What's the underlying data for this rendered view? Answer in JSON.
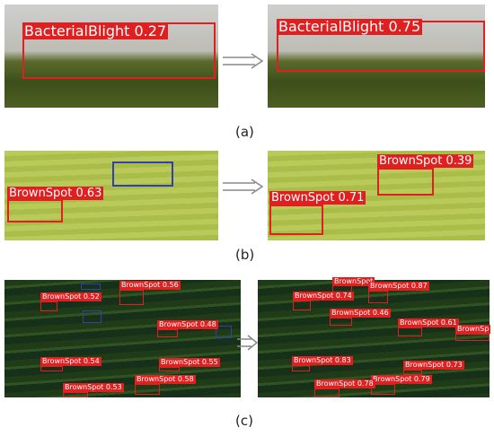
{
  "panels": [
    {
      "caption": "(a)",
      "left": {
        "detections": [
          {
            "label": "BacterialBlight 0.27"
          }
        ]
      },
      "right": {
        "detections": [
          {
            "label": "BacterialBlight 0.75"
          }
        ]
      }
    },
    {
      "caption": "(b)",
      "left": {
        "detections": [
          {
            "label": "BrownSpot 0.63"
          }
        ]
      },
      "right": {
        "detections": [
          {
            "label": "BrownSpot 0.39"
          },
          {
            "label": "BrownSpot 0.71"
          }
        ]
      }
    },
    {
      "caption": "(c)",
      "left": {
        "detections": [
          {
            "label": "BrownSpot 0.56"
          },
          {
            "label": "BrownSpot 0.52"
          },
          {
            "label": "BrownSpot 0.48"
          },
          {
            "label": "BrownSpot 0.54"
          },
          {
            "label": "BrownSpot 0.55"
          },
          {
            "label": "BrownSpot 0.58"
          },
          {
            "label": "BrownSpot 0.53"
          }
        ]
      },
      "right": {
        "detections": [
          {
            "label": "BrownSpot"
          },
          {
            "label": "BrownSpot 0.87"
          },
          {
            "label": "BrownSpot 0.74"
          },
          {
            "label": "BrownSpot 0.46"
          },
          {
            "label": "BrownSpot 0.61"
          },
          {
            "label": "BrownSp"
          },
          {
            "label": "BrownSpot 0.83"
          },
          {
            "label": "BrownSpot 0.73"
          },
          {
            "label": "BrownSpot 0.79"
          },
          {
            "label": "BrownSpot 0.78"
          }
        ]
      }
    }
  ]
}
